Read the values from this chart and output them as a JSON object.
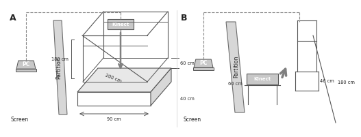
{
  "bg_color": "#ffffff",
  "line_color": "#555555",
  "gray_fill": "#c8c8c8",
  "partition_color_A": "#d0d0d0",
  "partition_color_B": "#d0d0d0",
  "dashed_color": "#888888",
  "arrow_color": "#808080",
  "text_color": "#222222",
  "label_A": "A",
  "label_B": "B",
  "text_partition": "Partition",
  "text_screen": "Screen",
  "text_PC": "PC",
  "text_kinect": "Kinect",
  "text_180cm": "180 cm",
  "text_200cm": "200 cm",
  "text_90cm": "90 cm",
  "text_60cm_A": "60 cm",
  "text_40cm": "40 cm",
  "text_60cm_B": "60 cm",
  "text_180cm_B": "180 cm",
  "text_46cm": "46 cm"
}
